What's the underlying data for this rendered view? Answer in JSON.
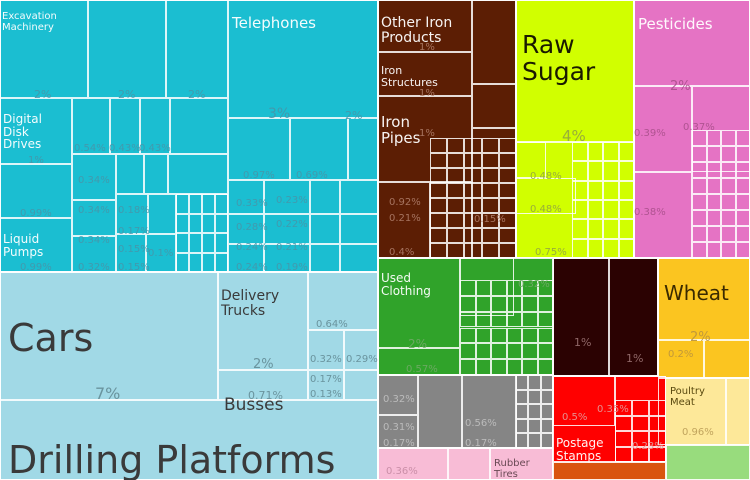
{
  "chart_data": {
    "type": "treemap",
    "labels": [
      {
        "text": "Excavation\nMachinery",
        "group": "machinery"
      },
      {
        "text": "Telephones",
        "group": "machinery"
      },
      {
        "text": "Digital\nDisk\nDrives",
        "group": "machinery"
      },
      {
        "text": "Liquid\nPumps",
        "group": "machinery"
      },
      {
        "text": "Cars",
        "group": "transport"
      },
      {
        "text": "Delivery\nTrucks",
        "group": "transport"
      },
      {
        "text": "Busses",
        "group": "transport"
      },
      {
        "text": "Drilling Platforms",
        "group": "transport"
      },
      {
        "text": "Other Iron\nProducts",
        "group": "metals"
      },
      {
        "text": "Iron\nStructures",
        "group": "metals"
      },
      {
        "text": "Iron\nPipes",
        "group": "metals"
      },
      {
        "text": "Raw\nSugar",
        "group": "food"
      },
      {
        "text": "Pesticides",
        "group": "chemicals"
      },
      {
        "text": "Used\nClothing",
        "group": "textiles"
      },
      {
        "text": "Wheat",
        "group": "vegetables"
      },
      {
        "text": "Poultry\nMeat",
        "group": "animal"
      },
      {
        "text": "Rubber\nTires",
        "group": "plastics"
      },
      {
        "text": "Postage\nStamps",
        "group": "misc"
      }
    ],
    "percent_labels": [
      {
        "text": "2%",
        "group": "machinery"
      },
      {
        "text": "2%",
        "group": "machinery"
      },
      {
        "text": "2%",
        "group": "machinery"
      },
      {
        "text": "3%",
        "group": "machinery"
      },
      {
        "text": "2%",
        "group": "machinery"
      },
      {
        "text": "1%",
        "group": "machinery"
      },
      {
        "text": "0.99%",
        "group": "machinery"
      },
      {
        "text": "0.99%",
        "group": "machinery"
      },
      {
        "text": "0.54%",
        "group": "machinery"
      },
      {
        "text": "0.43%",
        "group": "machinery"
      },
      {
        "text": "0.43%",
        "group": "machinery"
      },
      {
        "text": "0.34%",
        "group": "machinery"
      },
      {
        "text": "0.34%",
        "group": "machinery"
      },
      {
        "text": "0.34%",
        "group": "machinery"
      },
      {
        "text": "0.32%",
        "group": "machinery"
      },
      {
        "text": "0.18%",
        "group": "machinery"
      },
      {
        "text": "0.17%",
        "group": "machinery"
      },
      {
        "text": "0.15%",
        "group": "machinery"
      },
      {
        "text": "0.15%",
        "group": "machinery"
      },
      {
        "text": "0.1%",
        "group": "machinery"
      },
      {
        "text": "0.97%",
        "group": "machinery"
      },
      {
        "text": "0.69%",
        "group": "machinery"
      },
      {
        "text": "0.33%",
        "group": "machinery"
      },
      {
        "text": "0.23%",
        "group": "machinery"
      },
      {
        "text": "0.28%",
        "group": "machinery"
      },
      {
        "text": "0.22%",
        "group": "machinery"
      },
      {
        "text": "0.24%",
        "group": "machinery"
      },
      {
        "text": "0.21%",
        "group": "machinery"
      },
      {
        "text": "0.24%",
        "group": "machinery"
      },
      {
        "text": "0.19%",
        "group": "machinery"
      },
      {
        "text": "7%",
        "group": "transport"
      },
      {
        "text": "2%",
        "group": "transport"
      },
      {
        "text": "0.71%",
        "group": "transport"
      },
      {
        "text": "0.64%",
        "group": "transport"
      },
      {
        "text": "0.32%",
        "group": "transport"
      },
      {
        "text": "0.29%",
        "group": "transport"
      },
      {
        "text": "0.17%",
        "group": "transport"
      },
      {
        "text": "0.13%",
        "group": "transport"
      },
      {
        "text": "1%",
        "group": "metals"
      },
      {
        "text": "1%",
        "group": "metals"
      },
      {
        "text": "1%",
        "group": "metals"
      },
      {
        "text": "0.92%",
        "group": "metals"
      },
      {
        "text": "0.21%",
        "group": "metals"
      },
      {
        "text": "0.15%",
        "group": "metals"
      },
      {
        "text": "0.4%",
        "group": "metals"
      },
      {
        "text": "4%",
        "group": "food"
      },
      {
        "text": "0.48%",
        "group": "food"
      },
      {
        "text": "0.48%",
        "group": "food"
      },
      {
        "text": "0.75%",
        "group": "food"
      },
      {
        "text": "2%",
        "group": "chemicals"
      },
      {
        "text": "0.39%",
        "group": "chemicals"
      },
      {
        "text": "0.37%",
        "group": "chemicals"
      },
      {
        "text": "0.38%",
        "group": "chemicals"
      },
      {
        "text": "0.32%",
        "group": "textiles"
      },
      {
        "text": "2%",
        "group": "textiles"
      },
      {
        "text": "0.57%",
        "group": "textiles"
      },
      {
        "text": "1%",
        "group": "mineral"
      },
      {
        "text": "1%",
        "group": "mineral"
      },
      {
        "text": "2%",
        "group": "vegetables"
      },
      {
        "text": "0.2%",
        "group": "vegetables"
      },
      {
        "text": "0.96%",
        "group": "animal"
      },
      {
        "text": "0.32%",
        "group": "stone"
      },
      {
        "text": "0.31%",
        "group": "stone"
      },
      {
        "text": "0.56%",
        "group": "stone"
      },
      {
        "text": "0.17%",
        "group": "stone"
      },
      {
        "text": "0.17%",
        "group": "stone"
      },
      {
        "text": "0.36%",
        "group": "plastics"
      },
      {
        "text": "0.5%",
        "group": "misc"
      },
      {
        "text": "0.35%",
        "group": "misc"
      },
      {
        "text": "0.23%",
        "group": "misc"
      }
    ],
    "colors": {
      "machinery": "#1bbed1",
      "transport": "#a1d9e6",
      "metals": "#5c1e04",
      "food": "#d1ff00",
      "chemicals": "#e573c4",
      "textiles": "#30a32a",
      "mineral": "#2b0202",
      "vegetables": "#fbc520",
      "animal": "#fde899",
      "stone": "#858585",
      "plastics": "#f8bcd6",
      "misc": "#ff0000",
      "misc_bottom": "#d9540f",
      "other_green": "#98dc7d"
    }
  }
}
